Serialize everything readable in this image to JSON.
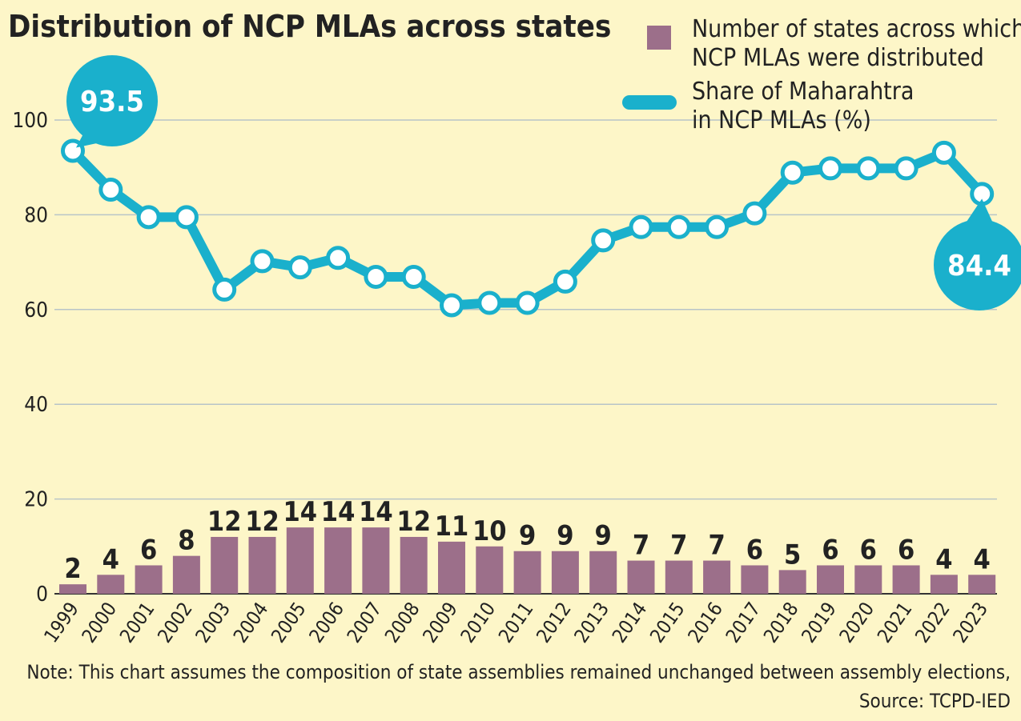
{
  "chart_data": {
    "type": "bar+line",
    "title": "Distribution of NCP MLAs across states",
    "categories": [
      "1999",
      "2000",
      "2001",
      "2002",
      "2003",
      "2004",
      "2005",
      "2006",
      "2007",
      "2008",
      "2009",
      "2010",
      "2011",
      "2012",
      "2013",
      "2014",
      "2015",
      "2016",
      "2017",
      "2018",
      "2019",
      "2020",
      "2021",
      "2022",
      "2023"
    ],
    "series": [
      {
        "name": "Number of states across which NCP MLAs were distributed",
        "type": "bar",
        "color": "#9c6f8a",
        "values": [
          2,
          4,
          6,
          8,
          12,
          12,
          14,
          14,
          14,
          12,
          11,
          10,
          9,
          9,
          9,
          7,
          7,
          7,
          6,
          5,
          6,
          6,
          6,
          4,
          4
        ]
      },
      {
        "name": "Share of Maharahtra in NCP MLAs (%)",
        "type": "line",
        "color": "#1ab0cc",
        "values": [
          93.5,
          85.3,
          79.5,
          79.5,
          64.2,
          70.2,
          68.9,
          70.9,
          66.9,
          66.9,
          60.9,
          61.4,
          61.4,
          65.9,
          74.6,
          77.4,
          77.4,
          77.4,
          80.3,
          88.9,
          89.8,
          89.8,
          89.8,
          93.1,
          84.4
        ]
      }
    ],
    "legend": {
      "bar_label_line1": "Number of states across which",
      "bar_label_line2": "NCP MLAs were distributed",
      "line_label_line1": "Share of Maharahtra",
      "line_label_line2": "in NCP MLAs (%)",
      "position": "top-right"
    },
    "callouts": {
      "start": "93.5",
      "end": "84.4"
    },
    "y_ticks": [
      0,
      20,
      40,
      60,
      80,
      100
    ],
    "ylim": [
      0,
      110
    ],
    "grid": true,
    "note": "Note: This chart assumes the composition of state assemblies remained unchanged between assembly elections,",
    "source": "Source: TCPD-IED",
    "colors": {
      "background": "#fdf6c8",
      "grid": "#b8c4c8",
      "text": "#222222"
    }
  }
}
